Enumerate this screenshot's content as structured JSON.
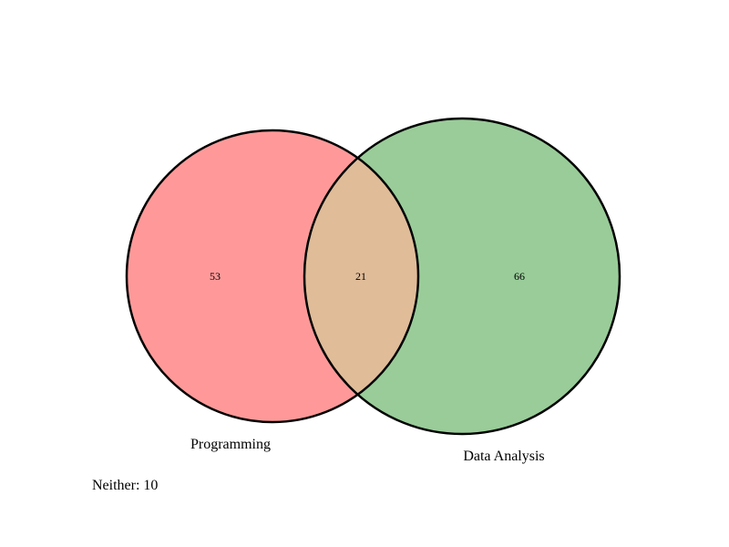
{
  "sets": {
    "left": {
      "label": "Programming",
      "fill": "#ff9999"
    },
    "right": {
      "label": "Data Analysis",
      "fill": "#99cc99"
    }
  },
  "regions": {
    "left_only": "53",
    "intersection": "21",
    "right_only": "66"
  },
  "intersection_fill": "#e0bc99",
  "outline_color": "#000000",
  "neither": {
    "text": "Neither: 10"
  }
}
